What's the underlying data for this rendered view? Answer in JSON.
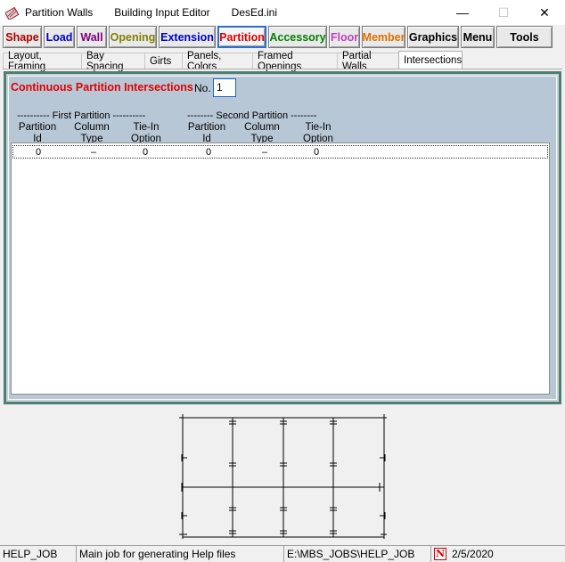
{
  "window": {
    "title_segments": [
      "Partition Walls",
      "Building Input Editor",
      "DesEd.ini"
    ],
    "controls": {
      "minimize": "—",
      "maximize": "☐",
      "close": "✕"
    }
  },
  "toolbar": {
    "buttons": [
      {
        "label": "Shape",
        "color": "#b00000"
      },
      {
        "label": "Load",
        "color": "#0000c8"
      },
      {
        "label": "Wall",
        "color": "#800080"
      },
      {
        "label": "Opening",
        "color": "#808000"
      },
      {
        "label": "Extension",
        "color": "#0000c8"
      },
      {
        "label": "Partition",
        "color": "#e00000",
        "active": true
      },
      {
        "label": "Accessory",
        "color": "#008000"
      },
      {
        "label": "Floor",
        "color": "#c040c0"
      },
      {
        "label": "Member",
        "color": "#e07000"
      },
      {
        "label": "Graphics",
        "color": "#000000"
      },
      {
        "label": "Menu",
        "color": "#000000"
      },
      {
        "label": "Tools",
        "color": "#000000"
      }
    ]
  },
  "tabs": [
    {
      "label": "Layout, Framing"
    },
    {
      "label": "Bay Spacing"
    },
    {
      "label": "Girts"
    },
    {
      "label": "Panels, Colors"
    },
    {
      "label": "Framed Openings"
    },
    {
      "label": "Partial Walls"
    },
    {
      "label": "Intersections",
      "active": true
    }
  ],
  "panel": {
    "title": "Continuous Partition Intersections",
    "no_label": "No.",
    "no_value": "1",
    "first_group": "---------- First Partition ----------",
    "second_group": "-------- Second Partition --------",
    "columns": [
      {
        "line1": "Partition",
        "line2": "Id"
      },
      {
        "line1": "Column",
        "line2": "Type"
      },
      {
        "line1": "Tie-In",
        "line2": "Option"
      },
      {
        "line1": "Partition",
        "line2": "Id"
      },
      {
        "line1": "Column",
        "line2": "Type"
      },
      {
        "line1": "Tie-In",
        "line2": "Option"
      }
    ],
    "rows": [
      [
        "0",
        "–",
        "0",
        "0",
        "–",
        "0"
      ]
    ]
  },
  "status": {
    "job": "HELP_JOB",
    "description": "Main job for generating Help files",
    "path": "E:\\MBS_JOBS\\HELP_JOB",
    "icon_letter": "N",
    "date": "2/5/2020"
  }
}
